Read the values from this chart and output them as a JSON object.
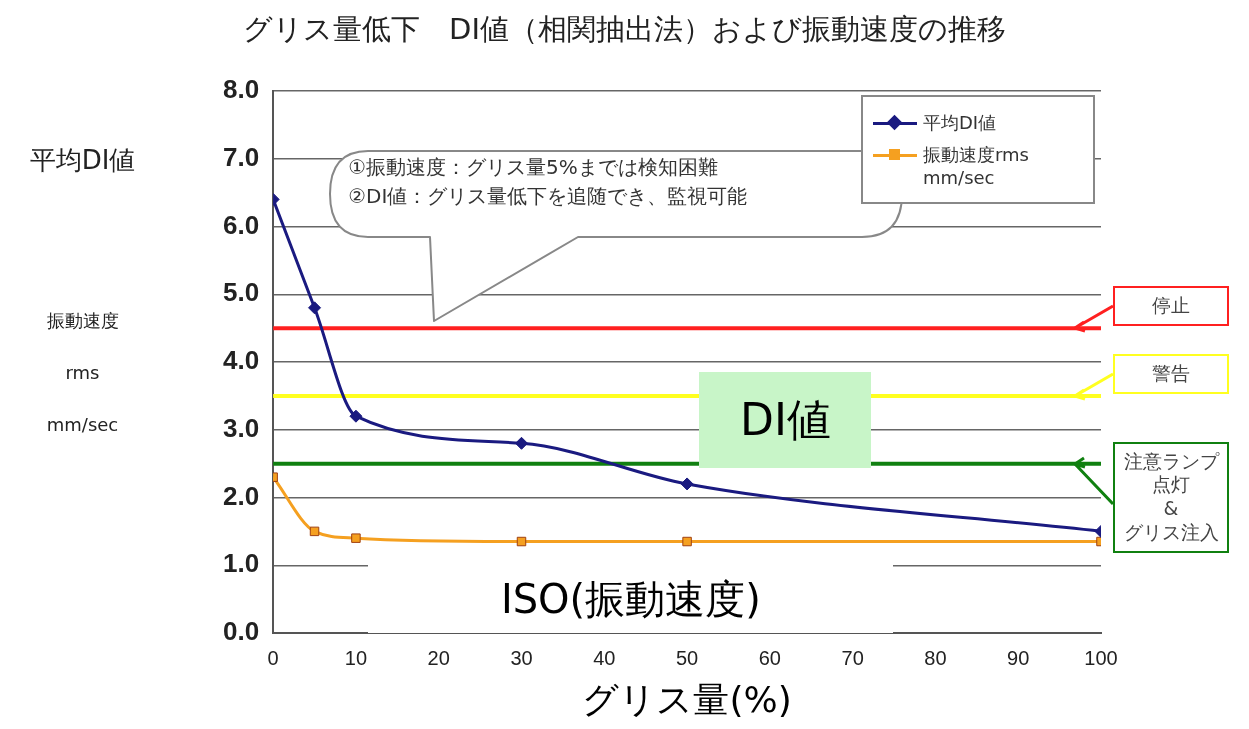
{
  "chart_data": {
    "type": "line",
    "title": "グリス量低下　DI値（相関抽出法）および振動速度の推移",
    "xlabel": "グリス量(%)",
    "ylabel": "平均DI値",
    "x": [
      0,
      5,
      10,
      30,
      50,
      100
    ],
    "series": [
      {
        "name": "平均DI値",
        "color": "#1a1a80",
        "marker": "diamond",
        "values": [
          6.4,
          4.8,
          3.2,
          2.8,
          2.2,
          1.5
        ]
      },
      {
        "name": "振動速度rms mm/sec",
        "color": "#f5a020",
        "marker": "square",
        "values": [
          2.3,
          1.5,
          1.4,
          1.35,
          1.35,
          1.35
        ]
      }
    ],
    "xlim": [
      0,
      100
    ],
    "xticks": [
      0,
      10,
      20,
      30,
      40,
      50,
      60,
      70,
      80,
      90,
      100
    ],
    "ylim": [
      0,
      8
    ],
    "yticks": [
      {
        "value": 0,
        "label": "0.0"
      },
      {
        "value": 1,
        "label": "1.0"
      },
      {
        "value": 2,
        "label": "2.0"
      },
      {
        "value": 3,
        "label": "3.0"
      },
      {
        "value": 4,
        "label": "4.0"
      },
      {
        "value": 5,
        "label": "5.0"
      },
      {
        "value": 6,
        "label": "6.0"
      },
      {
        "value": 7,
        "label": "7.0"
      },
      {
        "value": 8,
        "label": "8.0"
      }
    ],
    "ref_lines": [
      {
        "axis": "y",
        "value": 4.5,
        "label": "停止",
        "color": "#ff2020"
      },
      {
        "axis": "y",
        "value": 3.5,
        "label": "警告",
        "color": "#ffff20"
      },
      {
        "axis": "y",
        "value": 2.5,
        "label": "注意ランプ点灯\n&\nグリス注入",
        "color": "#108010"
      }
    ],
    "annotations": [
      "①振動速度：グリス量5%までは検知困難\n②DI値：グリス量低下を追随でき、監視可能",
      "DI値",
      "ISO(振動速度)",
      "振動速度\nrms\nmm/sec"
    ],
    "grid": "y",
    "legend": "top right",
    "line_style": "solid"
  }
}
